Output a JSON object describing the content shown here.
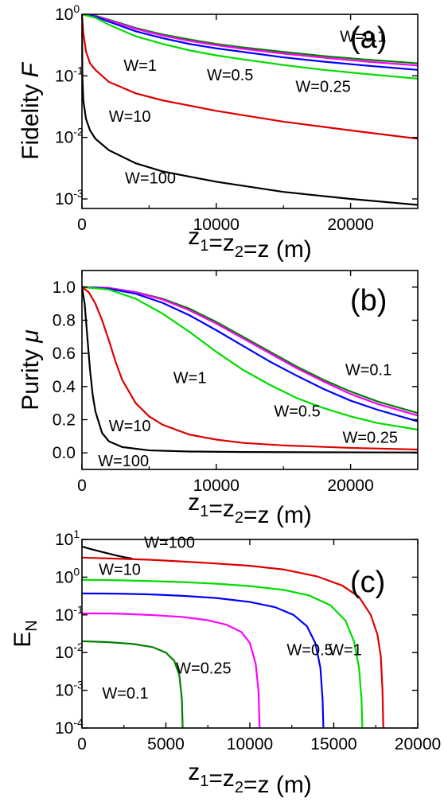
{
  "chart_data": [
    {
      "panel": "(a)",
      "type": "line",
      "ylabel_main": "Fidelity ",
      "ylabel_var": "F",
      "xlabel": "z₁=z₂=z  (m)",
      "xlim": [
        0,
        25000
      ],
      "ylim": [
        0.0007,
        1
      ],
      "yscale": "log",
      "x_ticks": [
        0,
        10000,
        20000
      ],
      "y_ticks": [
        {
          "value": 1,
          "base": "10",
          "exp": "0"
        },
        {
          "value": 0.1,
          "base": "10",
          "exp": "-1"
        },
        {
          "value": 0.01,
          "base": "10",
          "exp": "-2"
        },
        {
          "value": 0.001,
          "base": "10",
          "exp": "-3"
        }
      ],
      "series": [
        {
          "name": "W=0.1",
          "color": "#008000",
          "x": [
            0,
            1000,
            2000,
            4000,
            6000,
            8000,
            10000,
            12000,
            15000,
            18000,
            21000,
            25000
          ],
          "values": [
            1,
            0.95,
            0.82,
            0.6,
            0.47,
            0.39,
            0.33,
            0.29,
            0.245,
            0.21,
            0.185,
            0.16
          ]
        },
        {
          "name": "W=0.25",
          "color": "#ff00ff",
          "x": [
            0,
            1000,
            2000,
            4000,
            6000,
            8000,
            10000,
            12000,
            15000,
            18000,
            21000,
            25000
          ],
          "values": [
            1,
            0.94,
            0.8,
            0.58,
            0.45,
            0.37,
            0.315,
            0.275,
            0.23,
            0.197,
            0.172,
            0.147
          ]
        },
        {
          "name": "W=0.5",
          "color": "#0000ff",
          "x": [
            0,
            1000,
            2000,
            4000,
            6000,
            8000,
            10000,
            12000,
            15000,
            18000,
            21000,
            25000
          ],
          "values": [
            1,
            0.92,
            0.76,
            0.53,
            0.41,
            0.33,
            0.28,
            0.245,
            0.2,
            0.17,
            0.148,
            0.125
          ]
        },
        {
          "name": "W=1",
          "color": "#00dd00",
          "x": [
            0,
            1000,
            2000,
            4000,
            6000,
            8000,
            10000,
            12000,
            15000,
            18000,
            21000,
            25000
          ],
          "values": [
            1,
            0.88,
            0.68,
            0.44,
            0.33,
            0.26,
            0.215,
            0.185,
            0.15,
            0.125,
            0.108,
            0.09
          ]
        },
        {
          "name": "W=10",
          "color": "#dd0000",
          "x": [
            0,
            100,
            300,
            600,
            1000,
            2000,
            4000,
            6000,
            10000,
            15000,
            20000,
            25000
          ],
          "values": [
            1,
            0.5,
            0.25,
            0.16,
            0.125,
            0.08,
            0.052,
            0.04,
            0.027,
            0.018,
            0.013,
            0.0095
          ]
        },
        {
          "name": "W=100",
          "color": "#000000",
          "x": [
            0,
            30,
            100,
            300,
            600,
            1000,
            2000,
            4000,
            6000,
            10000,
            15000,
            20000,
            25000
          ],
          "values": [
            1,
            0.1,
            0.04,
            0.02,
            0.013,
            0.0095,
            0.0062,
            0.0038,
            0.0028,
            0.0019,
            0.0013,
            0.001,
            0.0008
          ]
        }
      ],
      "annotations": [
        {
          "text": "W=0.1",
          "x": 19200,
          "y": 0.36
        },
        {
          "text": "W=1",
          "x": 3100,
          "y": 0.12
        },
        {
          "text": "W=0.5",
          "x": 9300,
          "y": 0.085
        },
        {
          "text": "W=0.25",
          "x": 15900,
          "y": 0.055
        },
        {
          "text": "W=10",
          "x": 2000,
          "y": 0.018
        },
        {
          "text": "W=100",
          "x": 3200,
          "y": 0.0018
        }
      ]
    },
    {
      "panel": "(b)",
      "type": "line",
      "ylabel_main": "Purity ",
      "ylabel_var": "μ",
      "xlabel": "z₁=z₂=z (m)",
      "xlim": [
        0,
        25000
      ],
      "ylim": [
        -0.1,
        1.1
      ],
      "yscale": "linear",
      "x_ticks": [
        0,
        10000,
        20000
      ],
      "y_ticks": [
        "0.0",
        "0.2",
        "0.4",
        "0.6",
        "0.8",
        "1.0"
      ],
      "series": [
        {
          "name": "W=0.1",
          "color": "#008000",
          "x": [
            0,
            2000,
            4000,
            6000,
            8000,
            10000,
            12000,
            14000,
            16000,
            18000,
            20000,
            22000,
            25000
          ],
          "values": [
            1,
            0.995,
            0.97,
            0.93,
            0.87,
            0.79,
            0.7,
            0.61,
            0.52,
            0.44,
            0.37,
            0.31,
            0.24
          ]
        },
        {
          "name": "W=0.25",
          "color": "#ff00ff",
          "x": [
            0,
            2000,
            4000,
            6000,
            8000,
            10000,
            12000,
            14000,
            16000,
            18000,
            20000,
            22000,
            25000
          ],
          "values": [
            1,
            0.995,
            0.968,
            0.925,
            0.86,
            0.78,
            0.69,
            0.6,
            0.51,
            0.43,
            0.355,
            0.295,
            0.225
          ]
        },
        {
          "name": "W=0.5",
          "color": "#0000ff",
          "x": [
            0,
            2000,
            4000,
            6000,
            8000,
            10000,
            12000,
            14000,
            16000,
            18000,
            20000,
            22000,
            25000
          ],
          "values": [
            1,
            0.99,
            0.96,
            0.905,
            0.83,
            0.74,
            0.645,
            0.55,
            0.465,
            0.385,
            0.315,
            0.26,
            0.19
          ]
        },
        {
          "name": "W=1",
          "color": "#00dd00",
          "x": [
            0,
            2000,
            4000,
            6000,
            8000,
            10000,
            12000,
            14000,
            16000,
            18000,
            20000,
            22000,
            25000
          ],
          "values": [
            1,
            0.985,
            0.93,
            0.84,
            0.73,
            0.61,
            0.5,
            0.41,
            0.33,
            0.27,
            0.22,
            0.18,
            0.14
          ]
        },
        {
          "name": "W=10",
          "color": "#dd0000",
          "x": [
            0,
            500,
            1000,
            1500,
            2000,
            2500,
            3000,
            4000,
            5000,
            6000,
            8000,
            10000,
            12000,
            15000,
            20000,
            25000
          ],
          "values": [
            1,
            0.97,
            0.9,
            0.8,
            0.68,
            0.55,
            0.44,
            0.3,
            0.22,
            0.17,
            0.11,
            0.08,
            0.06,
            0.045,
            0.03,
            0.02
          ]
        },
        {
          "name": "W=100",
          "color": "#000000",
          "x": [
            0,
            200,
            400,
            600,
            800,
            1000,
            1500,
            2000,
            3000,
            5000,
            8000,
            12000,
            25000
          ],
          "values": [
            1,
            0.9,
            0.7,
            0.5,
            0.35,
            0.25,
            0.12,
            0.07,
            0.035,
            0.015,
            0.008,
            0.005,
            0.002
          ]
        }
      ],
      "annotations": [
        {
          "text": "W=0.1",
          "x": 19600,
          "y": 0.47
        },
        {
          "text": "W=1",
          "x": 6800,
          "y": 0.42
        },
        {
          "text": "W=0.5",
          "x": 14300,
          "y": 0.22
        },
        {
          "text": "W=0.25",
          "x": 19400,
          "y": 0.06
        },
        {
          "text": "W=10",
          "x": 2000,
          "y": 0.13
        },
        {
          "text": "W=100",
          "x": 1200,
          "y": -0.08
        }
      ]
    },
    {
      "panel": "(c)",
      "type": "line",
      "ylabel_main": "E",
      "ylabel_sub": "N",
      "xlabel": "z₁=z₂=z (m)",
      "xlim": [
        0,
        20000
      ],
      "ylim": [
        0.0001,
        10
      ],
      "yscale": "log",
      "x_ticks": [
        0,
        5000,
        10000,
        15000,
        20000
      ],
      "y_ticks": [
        {
          "value": 10,
          "base": "10",
          "exp": "1"
        },
        {
          "value": 1,
          "base": "10",
          "exp": "0"
        },
        {
          "value": 0.1,
          "base": "10",
          "exp": "-1"
        },
        {
          "value": 0.01,
          "base": "10",
          "exp": "-2"
        },
        {
          "value": 0.001,
          "base": "10",
          "exp": "-3"
        },
        {
          "value": 0.0001,
          "base": "10",
          "exp": "-4"
        }
      ],
      "series": [
        {
          "name": "W=100",
          "color": "#000000",
          "x": [
            0,
            500,
            1000,
            1500,
            2000,
            2500,
            3000
          ],
          "values": [
            6.5,
            5.6,
            4.9,
            4.3,
            3.8,
            3.4,
            3.1
          ]
        },
        {
          "name": "W=10",
          "color": "#dd0000",
          "x": [
            0,
            2000,
            4000,
            6000,
            8000,
            10000,
            12000,
            14000,
            15500,
            16500,
            17200,
            17600,
            17800,
            17900,
            17950
          ],
          "values": [
            3.3,
            3.1,
            2.9,
            2.6,
            2.3,
            2,
            1.6,
            1.05,
            0.6,
            0.3,
            0.1,
            0.03,
            0.008,
            0.001,
            0.0001
          ]
        },
        {
          "name": "W=1",
          "color": "#00dd00",
          "x": [
            0,
            2000,
            4000,
            6000,
            8000,
            10000,
            12000,
            13500,
            14800,
            15700,
            16200,
            16500,
            16650,
            16700
          ],
          "values": [
            0.85,
            0.83,
            0.79,
            0.74,
            0.67,
            0.58,
            0.46,
            0.33,
            0.18,
            0.07,
            0.02,
            0.004,
            0.0006,
            0.0001
          ]
        },
        {
          "name": "W=0.5",
          "color": "#0000ff",
          "x": [
            0,
            2000,
            4000,
            6000,
            8000,
            10000,
            11500,
            12600,
            13400,
            13900,
            14200,
            14330,
            14380
          ],
          "values": [
            0.37,
            0.365,
            0.35,
            0.32,
            0.28,
            0.22,
            0.16,
            0.1,
            0.05,
            0.018,
            0.004,
            0.0006,
            0.0001
          ]
        },
        {
          "name": "W=0.25",
          "color": "#ff00ff",
          "x": [
            0,
            2000,
            4000,
            6000,
            7500,
            8600,
            9500,
            10000,
            10350,
            10520,
            10580
          ],
          "values": [
            0.11,
            0.108,
            0.1,
            0.088,
            0.072,
            0.055,
            0.035,
            0.018,
            0.005,
            0.0009,
            0.0001
          ]
        },
        {
          "name": "W=0.1",
          "color": "#008000",
          "x": [
            0,
            1500,
            3000,
            4200,
            5000,
            5500,
            5800,
            5950,
            6000
          ],
          "values": [
            0.02,
            0.019,
            0.017,
            0.014,
            0.01,
            0.006,
            0.0025,
            0.0006,
            0.0001
          ]
        }
      ],
      "annotations": [
        {
          "text": "W=100",
          "x": 3700,
          "y": 6.0
        },
        {
          "text": "W=10",
          "x": 1000,
          "y": 1.15
        },
        {
          "text": "W=1",
          "x": 14700,
          "y": 0.0085
        },
        {
          "text": "W=0.5",
          "x": 12200,
          "y": 0.0085
        },
        {
          "text": "W=0.25",
          "x": 5600,
          "y": 0.0028
        },
        {
          "text": "W=0.1",
          "x": 1200,
          "y": 0.0006
        }
      ]
    }
  ]
}
